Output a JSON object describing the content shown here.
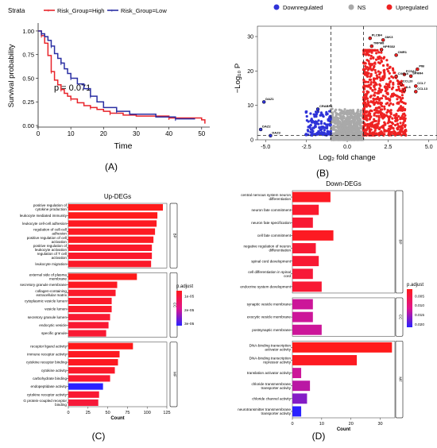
{
  "panel_labels": [
    "(A)",
    "(B)",
    "(C)",
    "(D)"
  ],
  "colors": {
    "high": "#e8232a",
    "low": "#2a2fa3",
    "down": "#2f33d8",
    "ns": "#a9a9a9",
    "up": "#ee2222"
  },
  "chart_data": [
    {
      "type": "line",
      "panel": "A",
      "legend": {
        "title": "Strata",
        "items": [
          "Risk_Group=High",
          "Risk_Group=Low"
        ],
        "placement": "top"
      },
      "xlabel": "Time",
      "ylabel": "Survival probability",
      "xlim": [
        0,
        52
      ],
      "ylim": [
        0,
        1.05
      ],
      "xticks": [
        "0",
        "10",
        "20",
        "30",
        "40",
        "50"
      ],
      "yticks": [
        "0.00",
        "0.25",
        "0.50",
        "0.75",
        "1.00"
      ],
      "annotation": "p = 0.071",
      "series": [
        {
          "name": "Risk_Group=High",
          "color": "#e8232a",
          "x": [
            0,
            1,
            2,
            3,
            4,
            5,
            6,
            7,
            8,
            9,
            10,
            12,
            14,
            16,
            18,
            20,
            22,
            26,
            30,
            40,
            50,
            51
          ],
          "y": [
            1.0,
            0.95,
            0.87,
            0.74,
            0.57,
            0.48,
            0.43,
            0.38,
            0.34,
            0.31,
            0.28,
            0.24,
            0.21,
            0.19,
            0.17,
            0.15,
            0.13,
            0.11,
            0.1,
            0.08,
            0.06,
            0.02
          ]
        },
        {
          "name": "Risk_Group=Low",
          "color": "#2a2fa3",
          "x": [
            0,
            1,
            2,
            3,
            4,
            5,
            6,
            7,
            8,
            9,
            10,
            12,
            14,
            16,
            18,
            20,
            24,
            28,
            36,
            42,
            48
          ],
          "y": [
            1.0,
            0.97,
            0.94,
            0.9,
            0.84,
            0.76,
            0.71,
            0.66,
            0.6,
            0.55,
            0.5,
            0.44,
            0.39,
            0.31,
            0.25,
            0.19,
            0.15,
            0.12,
            0.09,
            0.07,
            0.07
          ]
        }
      ]
    },
    {
      "type": "scatter",
      "panel": "B",
      "legend": {
        "items": [
          "Downregulated",
          "NS",
          "Upregulated"
        ],
        "placement": "top"
      },
      "xlabel": "Log₂ fold change",
      "ylabel": "−Log₁₀ P",
      "xlim": [
        -5.5,
        5.5
      ],
      "ylim": [
        0,
        33
      ],
      "xticks": [
        "-5.0",
        "-2.5",
        "0.0",
        "2.5",
        "5.0"
      ],
      "yticks": [
        "0",
        "10",
        "20",
        "30"
      ],
      "thresholds": {
        "x": [
          -1,
          1
        ],
        "y": 1.3
      },
      "labeled_genes": [
        {
          "name": "PLCB4",
          "x": 1.4,
          "y": 29.5
        },
        {
          "name": "JAK3",
          "x": 2.2,
          "y": 29
        },
        {
          "name": "TRPM8",
          "x": 1.5,
          "y": 27.2
        },
        {
          "name": "NPR332",
          "x": 2.1,
          "y": 26.2
        },
        {
          "name": "CMR1",
          "x": 3.0,
          "y": 24.6
        },
        {
          "name": "PIB",
          "x": 4.3,
          "y": 20.5
        },
        {
          "name": "FCSA1",
          "x": 3.5,
          "y": 19
        },
        {
          "name": "CXCL8",
          "x": 3.0,
          "y": 18.4
        },
        {
          "name": "SPRR4",
          "x": 3.9,
          "y": 18.5
        },
        {
          "name": "CCL20",
          "x": 3.3,
          "y": 16.2
        },
        {
          "name": "CCL7",
          "x": 4.2,
          "y": 15.6
        },
        {
          "name": "IL6",
          "x": 3.5,
          "y": 14.4
        },
        {
          "name": "CCL13",
          "x": 4.2,
          "y": 14
        },
        {
          "name": "CRABP2",
          "x": -1.8,
          "y": 8.9
        },
        {
          "name": "DAZ1",
          "x": -5.1,
          "y": 11
        },
        {
          "name": "DAZ2",
          "x": -5.3,
          "y": 3
        },
        {
          "name": "DAZ3",
          "x": -4.7,
          "y": 1.2
        }
      ]
    },
    {
      "type": "bar",
      "panel": "C",
      "title": "Up-DEGs",
      "xlabel": "Count",
      "xticks": [
        "0",
        "25",
        "50",
        "75",
        "100",
        "125"
      ],
      "xlim": [
        0,
        125
      ],
      "legend": {
        "title": "p.adjust",
        "ticks": [
          "1e-05",
          "2e-05",
          "3e-05"
        ],
        "placement": "right"
      },
      "groups": [
        {
          "label": "BP",
          "items": [
            {
              "term": "positive regulation of cytokine production",
              "count": 120,
              "p": 2e-06
            },
            {
              "term": "leukocyte mediated immunity",
              "count": 113,
              "p": 2e-06
            },
            {
              "term": "leukocyte cell-cell adhesion",
              "count": 112,
              "p": 3e-06
            },
            {
              "term": "regulation of cell-cell adhesion",
              "count": 110,
              "p": 3e-06
            },
            {
              "term": "positive regulation of cell activation",
              "count": 108,
              "p": 3e-06
            },
            {
              "term": "positive regulation of leukocyte activation",
              "count": 106,
              "p": 4e-06
            },
            {
              "term": "regulation of T cell activation",
              "count": 106,
              "p": 4e-06
            },
            {
              "term": "leukocyte migration",
              "count": 105,
              "p": 4e-06
            }
          ]
        },
        {
          "label": "CC",
          "items": [
            {
              "term": "external side of plasma membrane",
              "count": 87,
              "p": 2e-06
            },
            {
              "term": "secretory granule membrane",
              "count": 62,
              "p": 3e-06
            },
            {
              "term": "collagen-containing extracellular matrix",
              "count": 60,
              "p": 4e-06
            },
            {
              "term": "cytoplasmic vesicle lumen",
              "count": 55,
              "p": 4e-06
            },
            {
              "term": "vesicle lumen",
              "count": 55,
              "p": 4e-06
            },
            {
              "term": "secretory granule lumen",
              "count": 53,
              "p": 5e-06
            },
            {
              "term": "endocytic vesicle",
              "count": 51,
              "p": 5e-06
            },
            {
              "term": "specific granule",
              "count": 48,
              "p": 5e-06
            }
          ]
        },
        {
          "label": "MF",
          "items": [
            {
              "term": "receptor ligand activity",
              "count": 82,
              "p": 2e-06
            },
            {
              "term": "immune receptor activity",
              "count": 65,
              "p": 3e-06
            },
            {
              "term": "cytokine receptor binding",
              "count": 63,
              "p": 3e-06
            },
            {
              "term": "cytokine activity",
              "count": 59,
              "p": 4e-06
            },
            {
              "term": "carbohydrate binding",
              "count": 53,
              "p": 5e-06
            },
            {
              "term": "endopeptidase activity",
              "count": 44,
              "p": 3.1e-05
            },
            {
              "term": "cytokine receptor activity",
              "count": 39,
              "p": 5e-06
            },
            {
              "term": "G protein-coupled receptor binding",
              "count": 38,
              "p": 6e-06
            }
          ]
        }
      ]
    },
    {
      "type": "bar",
      "panel": "D",
      "title": "Down-DEGs",
      "xlabel": "Count",
      "xticks": [
        "0",
        "10",
        "20",
        "30"
      ],
      "xlim": [
        0,
        35
      ],
      "legend": {
        "title": "p.adjust",
        "ticks": [
          "0.005",
          "0.010",
          "0.015",
          "0.020"
        ],
        "placement": "right"
      },
      "groups": [
        {
          "label": "BP",
          "items": [
            {
              "term": "central nervous system neuron differentiation",
              "count": 13,
              "p": 0.0015
            },
            {
              "term": "neuron fate commitment",
              "count": 9,
              "p": 0.0025
            },
            {
              "term": "neuron fate specification",
              "count": 7,
              "p": 0.003
            },
            {
              "term": "cell fate commitment",
              "count": 14,
              "p": 0.0015
            },
            {
              "term": "negative regulation of neuron differentiation",
              "count": 8,
              "p": 0.003
            },
            {
              "term": "spinal cord development",
              "count": 9,
              "p": 0.003
            },
            {
              "term": "cell differentiation in spinal cord",
              "count": 7,
              "p": 0.0035
            },
            {
              "term": "endocrine system development",
              "count": 10,
              "p": 0.003
            }
          ]
        },
        {
          "label": "CC",
          "items": [
            {
              "term": "synaptic vesicle membrane",
              "count": 7,
              "p": 0.012
            },
            {
              "term": "exocytic vesicle membrane",
              "count": 7,
              "p": 0.012
            },
            {
              "term": "postsynaptic membrane",
              "count": 10,
              "p": 0.012
            }
          ]
        },
        {
          "label": "MF",
          "items": [
            {
              "term": "DNA-binding transcription activator activity",
              "count": 34,
              "p": 0.0008
            },
            {
              "term": "DNA-binding transcription repressor activity",
              "count": 22,
              "p": 0.0015
            },
            {
              "term": "translation activator activity",
              "count": 3,
              "p": 0.012
            },
            {
              "term": "chloride transmembrane transporter activity",
              "count": 6,
              "p": 0.013
            },
            {
              "term": "chloride channel activity",
              "count": 5,
              "p": 0.016
            },
            {
              "term": "neurotransmitter transmembrane transporter activity",
              "count": 3,
              "p": 0.021
            }
          ]
        }
      ]
    }
  ]
}
